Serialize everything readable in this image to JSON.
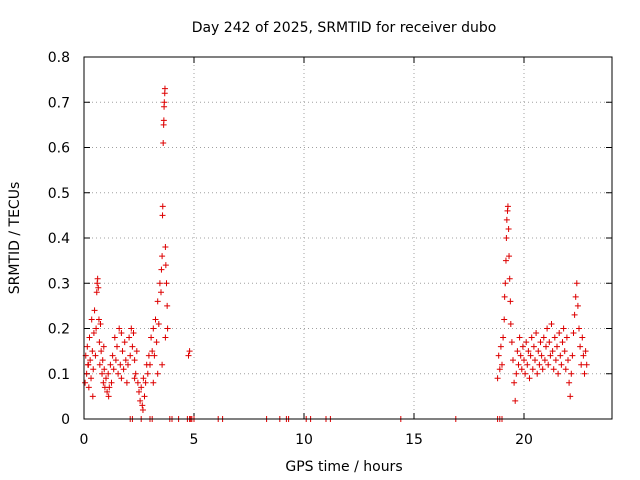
{
  "chart_data": {
    "type": "scatter",
    "title": "Day 242 of 2025, SRMTID for receiver dubo",
    "xlabel": "GPS time / hours",
    "ylabel": "SRMTID / TECUs",
    "xlim": [
      0,
      24
    ],
    "ylim": [
      0,
      0.8
    ],
    "xticks": [
      0,
      5,
      10,
      15,
      20
    ],
    "xtick_labels": [
      "0",
      "5",
      "10",
      "15",
      "20"
    ],
    "yticks": [
      0,
      0.1,
      0.2,
      0.3,
      0.4,
      0.5,
      0.6,
      0.7,
      0.8
    ],
    "ytick_labels": [
      "0",
      "0.1",
      "0.2",
      "0.3",
      "0.4",
      "0.5",
      "0.6",
      "0.7",
      "0.8"
    ],
    "grid": true,
    "marker": "+",
    "color": "#dd0000",
    "series": [
      {
        "name": "SRMTID",
        "points": [
          [
            0.05,
            0.08
          ],
          [
            0.08,
            0.14
          ],
          [
            0.12,
            0.1
          ],
          [
            0.15,
            0.16
          ],
          [
            0.18,
            0.12
          ],
          [
            0.22,
            0.07
          ],
          [
            0.25,
            0.18
          ],
          [
            0.28,
            0.13
          ],
          [
            0.32,
            0.09
          ],
          [
            0.35,
            0.22
          ],
          [
            0.38,
            0.15
          ],
          [
            0.42,
            0.11
          ],
          [
            0.45,
            0.19
          ],
          [
            0.48,
            0.24
          ],
          [
            0.52,
            0.14
          ],
          [
            0.55,
            0.2
          ],
          [
            0.58,
            0.28
          ],
          [
            0.6,
            0.3
          ],
          [
            0.62,
            0.31
          ],
          [
            0.65,
            0.29
          ],
          [
            0.68,
            0.22
          ],
          [
            0.7,
            0.17
          ],
          [
            0.72,
            0.12
          ],
          [
            0.75,
            0.21
          ],
          [
            0.78,
            0.15
          ],
          [
            0.82,
            0.1
          ],
          [
            0.85,
            0.13
          ],
          [
            0.88,
            0.08
          ],
          [
            0.92,
            0.11
          ],
          [
            0.95,
            0.07
          ],
          [
            1.0,
            0.09
          ],
          [
            1.05,
            0.06
          ],
          [
            1.1,
            0.1
          ],
          [
            1.15,
            0.07
          ],
          [
            1.2,
            0.12
          ],
          [
            1.25,
            0.08
          ],
          [
            1.3,
            0.14
          ],
          [
            1.35,
            0.11
          ],
          [
            1.4,
            0.18
          ],
          [
            1.45,
            0.13
          ],
          [
            1.5,
            0.16
          ],
          [
            1.55,
            0.1
          ],
          [
            1.6,
            0.2
          ],
          [
            1.65,
            0.12
          ],
          [
            1.7,
            0.09
          ],
          [
            1.75,
            0.15
          ],
          [
            1.8,
            0.11
          ],
          [
            1.85,
            0.17
          ],
          [
            1.9,
            0.13
          ],
          [
            1.95,
            0.08
          ],
          [
            2.0,
            0.12
          ],
          [
            2.05,
            0.18
          ],
          [
            2.1,
            0.14
          ],
          [
            2.15,
            0.2
          ],
          [
            2.2,
            0.16
          ],
          [
            2.25,
            0.19
          ],
          [
            2.3,
            0.13
          ],
          [
            2.35,
            0.1
          ],
          [
            2.4,
            0.15
          ],
          [
            2.45,
            0.08
          ],
          [
            2.5,
            0.06
          ],
          [
            2.55,
            0.04
          ],
          [
            2.6,
            0.07
          ],
          [
            2.65,
            0.03
          ],
          [
            2.7,
            0.09
          ],
          [
            2.75,
            0.05
          ],
          [
            2.8,
            0.08
          ],
          [
            2.85,
            0.12
          ],
          [
            2.9,
            0.1
          ],
          [
            2.95,
            0.14
          ],
          [
            3.0,
            0.12
          ],
          [
            3.05,
            0.18
          ],
          [
            3.1,
            0.15
          ],
          [
            3.15,
            0.2
          ],
          [
            3.2,
            0.14
          ],
          [
            3.25,
            0.22
          ],
          [
            3.3,
            0.17
          ],
          [
            3.35,
            0.26
          ],
          [
            3.4,
            0.21
          ],
          [
            3.45,
            0.3
          ],
          [
            3.5,
            0.28
          ],
          [
            3.52,
            0.33
          ],
          [
            3.55,
            0.36
          ],
          [
            3.57,
            0.45
          ],
          [
            3.58,
            0.47
          ],
          [
            3.6,
            0.61
          ],
          [
            3.62,
            0.65
          ],
          [
            3.63,
            0.66
          ],
          [
            3.64,
            0.69
          ],
          [
            3.65,
            0.7
          ],
          [
            3.67,
            0.72
          ],
          [
            3.68,
            0.73
          ],
          [
            3.7,
            0.38
          ],
          [
            3.72,
            0.34
          ],
          [
            3.75,
            0.3
          ],
          [
            3.78,
            0.25
          ],
          [
            3.8,
            0.2
          ],
          [
            4.75,
            0.14
          ],
          [
            4.8,
            0.15
          ],
          [
            0.4,
            0.05
          ],
          [
            1.12,
            0.05
          ],
          [
            2.68,
            0.02
          ],
          [
            3.35,
            0.1
          ],
          [
            3.55,
            0.12
          ],
          [
            0.2,
            0.12
          ],
          [
            0.9,
            0.16
          ],
          [
            1.7,
            0.19
          ],
          [
            2.3,
            0.09
          ],
          [
            3.15,
            0.08
          ],
          [
            3.7,
            0.18
          ],
          [
            2.1,
            0
          ],
          [
            2.2,
            0
          ],
          [
            2.6,
            0
          ],
          [
            3.0,
            0
          ],
          [
            3.1,
            0
          ],
          [
            3.9,
            0
          ],
          [
            4.0,
            0
          ],
          [
            4.3,
            0
          ],
          [
            4.7,
            0
          ],
          [
            4.8,
            0
          ],
          [
            4.85,
            0
          ],
          [
            4.9,
            0
          ],
          [
            5.0,
            0
          ],
          [
            6.1,
            0
          ],
          [
            6.3,
            0
          ],
          [
            8.3,
            0
          ],
          [
            8.9,
            0
          ],
          [
            9.2,
            0
          ],
          [
            9.3,
            0
          ],
          [
            10.1,
            0
          ],
          [
            10.3,
            0
          ],
          [
            11.0,
            0
          ],
          [
            11.2,
            0
          ],
          [
            14.4,
            0
          ],
          [
            16.9,
            0
          ],
          [
            18.8,
            0
          ],
          [
            18.9,
            0
          ],
          [
            19.0,
            0
          ],
          [
            18.8,
            0.09
          ],
          [
            18.85,
            0.14
          ],
          [
            18.9,
            0.11
          ],
          [
            18.95,
            0.16
          ],
          [
            19.0,
            0.12
          ],
          [
            19.05,
            0.18
          ],
          [
            19.1,
            0.22
          ],
          [
            19.12,
            0.27
          ],
          [
            19.15,
            0.3
          ],
          [
            19.18,
            0.35
          ],
          [
            19.2,
            0.4
          ],
          [
            19.22,
            0.44
          ],
          [
            19.25,
            0.46
          ],
          [
            19.27,
            0.47
          ],
          [
            19.3,
            0.42
          ],
          [
            19.32,
            0.36
          ],
          [
            19.35,
            0.31
          ],
          [
            19.38,
            0.26
          ],
          [
            19.4,
            0.21
          ],
          [
            19.45,
            0.17
          ],
          [
            19.5,
            0.13
          ],
          [
            19.55,
            0.08
          ],
          [
            19.6,
            0.04
          ],
          [
            19.65,
            0.1
          ],
          [
            19.7,
            0.15
          ],
          [
            19.75,
            0.12
          ],
          [
            19.8,
            0.18
          ],
          [
            19.85,
            0.14
          ],
          [
            19.9,
            0.11
          ],
          [
            19.95,
            0.16
          ],
          [
            20.0,
            0.13
          ],
          [
            20.05,
            0.1
          ],
          [
            20.1,
            0.17
          ],
          [
            20.15,
            0.12
          ],
          [
            20.2,
            0.15
          ],
          [
            20.25,
            0.09
          ],
          [
            20.3,
            0.14
          ],
          [
            20.35,
            0.18
          ],
          [
            20.4,
            0.11
          ],
          [
            20.45,
            0.16
          ],
          [
            20.5,
            0.13
          ],
          [
            20.55,
            0.19
          ],
          [
            20.6,
            0.1
          ],
          [
            20.65,
            0.15
          ],
          [
            20.7,
            0.12
          ],
          [
            20.75,
            0.17
          ],
          [
            20.8,
            0.14
          ],
          [
            20.85,
            0.11
          ],
          [
            20.9,
            0.18
          ],
          [
            20.95,
            0.13
          ],
          [
            21.0,
            0.16
          ],
          [
            21.05,
            0.2
          ],
          [
            21.1,
            0.12
          ],
          [
            21.15,
            0.17
          ],
          [
            21.2,
            0.14
          ],
          [
            21.25,
            0.21
          ],
          [
            21.3,
            0.15
          ],
          [
            21.35,
            0.11
          ],
          [
            21.4,
            0.18
          ],
          [
            21.45,
            0.13
          ],
          [
            21.5,
            0.16
          ],
          [
            21.55,
            0.1
          ],
          [
            21.6,
            0.19
          ],
          [
            21.65,
            0.14
          ],
          [
            21.7,
            0.12
          ],
          [
            21.75,
            0.17
          ],
          [
            21.8,
            0.2
          ],
          [
            21.85,
            0.15
          ],
          [
            21.9,
            0.11
          ],
          [
            21.95,
            0.18
          ],
          [
            22.0,
            0.13
          ],
          [
            22.05,
            0.08
          ],
          [
            22.1,
            0.05
          ],
          [
            22.15,
            0.1
          ],
          [
            22.2,
            0.14
          ],
          [
            22.25,
            0.19
          ],
          [
            22.3,
            0.23
          ],
          [
            22.35,
            0.27
          ],
          [
            22.4,
            0.3
          ],
          [
            22.45,
            0.25
          ],
          [
            22.5,
            0.2
          ],
          [
            22.55,
            0.16
          ],
          [
            22.6,
            0.12
          ],
          [
            22.65,
            0.18
          ],
          [
            22.7,
            0.14
          ],
          [
            22.75,
            0.1
          ],
          [
            22.8,
            0.15
          ],
          [
            22.85,
            0.12
          ]
        ]
      }
    ]
  }
}
